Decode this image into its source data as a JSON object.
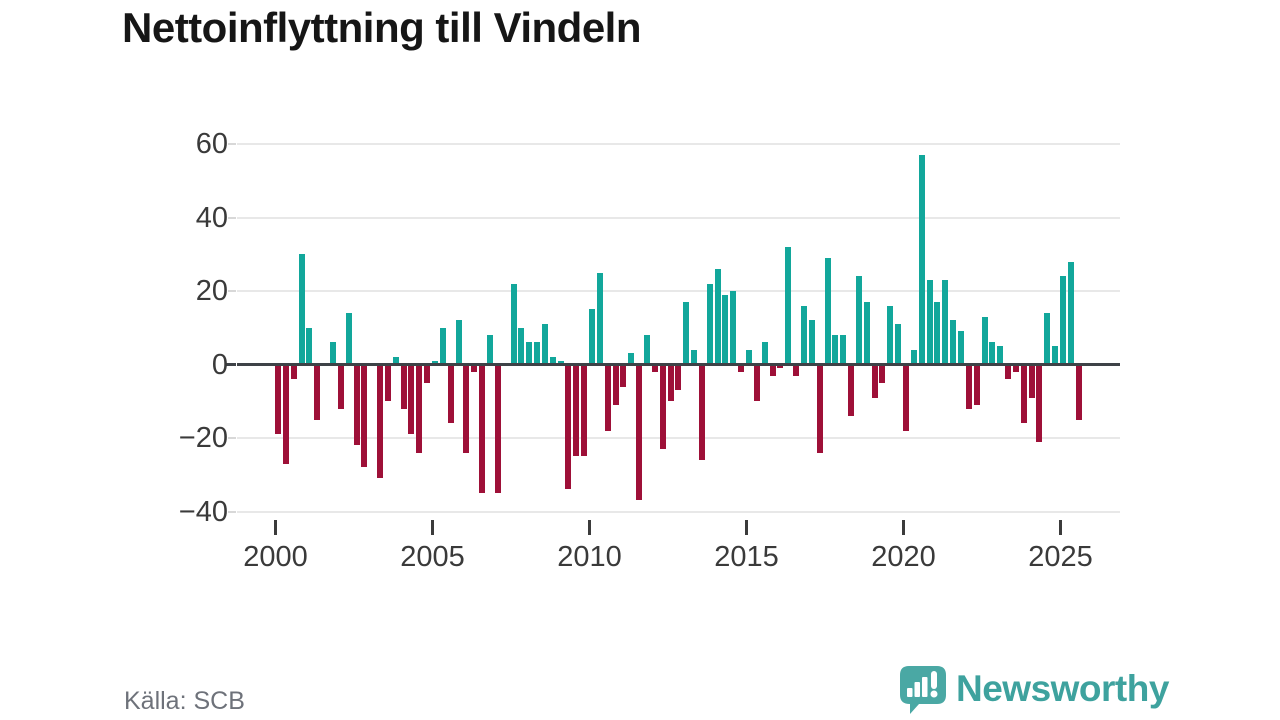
{
  "title": "Nettoinflyttning till Vindeln",
  "source": "Källa: SCB",
  "logo": {
    "text": "Newsworthy"
  },
  "colors": {
    "positive": "#12a79b",
    "negative": "#9e1038",
    "logo_bubble": "#4aa8a4",
    "logo_text": "#3ea29e",
    "gridline": "#e8e8e8",
    "axis_line": "#3e4247",
    "axis_text": "#3a3a3a",
    "title_text": "#161616",
    "source_text": "#6e727a"
  },
  "chart_data": {
    "type": "bar",
    "title": "Nettoinflyttning till Vindeln",
    "frequency": "quarterly",
    "start_period": "2000 Q1",
    "end_period": "2025 Q3",
    "values": [
      -19,
      -27,
      -4,
      30,
      10,
      -15,
      0,
      6,
      -12,
      14,
      -22,
      -28,
      0,
      -31,
      -10,
      2,
      -12,
      -19,
      -24,
      -5,
      1,
      10,
      -16,
      12,
      -24,
      -2,
      -35,
      8,
      -35,
      0,
      22,
      10,
      6,
      6,
      11,
      2,
      1,
      -34,
      -25,
      -25,
      15,
      25,
      -18,
      -11,
      -6,
      3,
      -37,
      8,
      -2,
      -23,
      -10,
      -7,
      17,
      4,
      -26,
      22,
      26,
      19,
      20,
      -2,
      4,
      -10,
      6,
      -3,
      -1,
      32,
      -3,
      16,
      12,
      -24,
      29,
      8,
      8,
      -14,
      24,
      17,
      -9,
      -5,
      16,
      11,
      -18,
      4,
      57,
      23,
      17,
      23,
      12,
      9,
      -12,
      -11,
      13,
      6,
      5,
      -4,
      -2,
      -16,
      -9,
      -21,
      14,
      5,
      24,
      28,
      -15
    ],
    "positive_color": "#12a79b",
    "negative_color": "#9e1038",
    "grid": true,
    "legend": "none",
    "xlabel": "",
    "ylabel": "",
    "ylim": [
      -45,
      65
    ],
    "y_ticks": [
      {
        "label": "60",
        "value": 60
      },
      {
        "label": "40",
        "value": 40
      },
      {
        "label": "20",
        "value": 20
      },
      {
        "label": "0",
        "value": 0
      },
      {
        "label": "−20",
        "value": -20
      },
      {
        "label": "−40",
        "value": -40
      }
    ],
    "x_ticks": [
      {
        "label": "2000",
        "year": 2000
      },
      {
        "label": "2005",
        "year": 2005
      },
      {
        "label": "2010",
        "year": 2010
      },
      {
        "label": "2015",
        "year": 2015
      },
      {
        "label": "2020",
        "year": 2020
      },
      {
        "label": "2025",
        "year": 2025
      }
    ]
  }
}
